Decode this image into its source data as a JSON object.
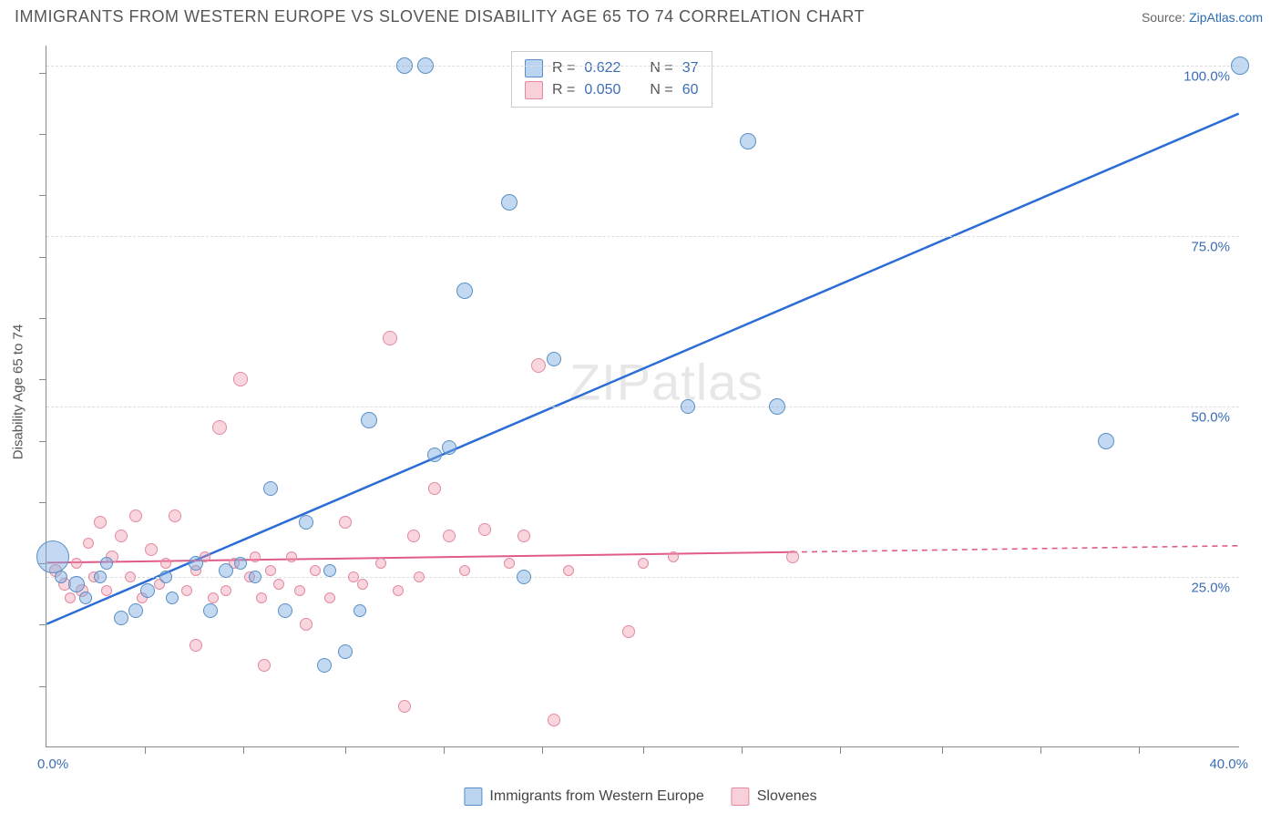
{
  "title": "IMMIGRANTS FROM WESTERN EUROPE VS SLOVENE DISABILITY AGE 65 TO 74 CORRELATION CHART",
  "source_label": "Source: ",
  "source_name": "ZipAtlas.com",
  "y_axis_label": "Disability Age 65 to 74",
  "watermark": "ZIPatlas",
  "chart": {
    "type": "scatter",
    "xlim": [
      0,
      40
    ],
    "ylim": [
      0,
      103
    ],
    "x_tick_labels": [
      "0.0%",
      "40.0%"
    ],
    "y_ticks": [
      25,
      50,
      75,
      100
    ],
    "y_tick_labels": [
      "25.0%",
      "50.0%",
      "75.0%",
      "100.0%"
    ],
    "x_minor_ticks": [
      3.3,
      6.6,
      10,
      13.3,
      16.6,
      20,
      23.3,
      26.6,
      30,
      33.3,
      36.6
    ],
    "y_minor_ticks": [
      9,
      18,
      27,
      36,
      45,
      54,
      63,
      72,
      81,
      90,
      99
    ],
    "background_color": "#ffffff",
    "grid_color": "#dddddd",
    "series": [
      {
        "name": "Immigrants from Western Europe",
        "color_fill": "rgba(120,170,225,0.45)",
        "color_stroke": "#5a8fc7",
        "R": "0.622",
        "N": "37",
        "regression": {
          "x1": 0,
          "y1": 18,
          "x2": 40,
          "y2": 93,
          "solid_until_x": 40,
          "color": "#2b6cd6",
          "width": 2.5
        },
        "points": [
          {
            "x": 0.2,
            "y": 28,
            "r": 18
          },
          {
            "x": 0.5,
            "y": 25,
            "r": 7
          },
          {
            "x": 1.0,
            "y": 24,
            "r": 9
          },
          {
            "x": 1.3,
            "y": 22,
            "r": 7
          },
          {
            "x": 1.8,
            "y": 25,
            "r": 7
          },
          {
            "x": 2.0,
            "y": 27,
            "r": 7
          },
          {
            "x": 2.5,
            "y": 19,
            "r": 8
          },
          {
            "x": 3.0,
            "y": 20,
            "r": 8
          },
          {
            "x": 3.4,
            "y": 23,
            "r": 8
          },
          {
            "x": 4.0,
            "y": 25,
            "r": 7
          },
          {
            "x": 4.2,
            "y": 22,
            "r": 7
          },
          {
            "x": 5.0,
            "y": 27,
            "r": 8
          },
          {
            "x": 5.5,
            "y": 20,
            "r": 8
          },
          {
            "x": 6.0,
            "y": 26,
            "r": 8
          },
          {
            "x": 6.5,
            "y": 27,
            "r": 7
          },
          {
            "x": 7.0,
            "y": 25,
            "r": 7
          },
          {
            "x": 7.5,
            "y": 38,
            "r": 8
          },
          {
            "x": 8.0,
            "y": 20,
            "r": 8
          },
          {
            "x": 8.7,
            "y": 33,
            "r": 8
          },
          {
            "x": 9.3,
            "y": 12,
            "r": 8
          },
          {
            "x": 9.5,
            "y": 26,
            "r": 7
          },
          {
            "x": 10.0,
            "y": 14,
            "r": 8
          },
          {
            "x": 10.5,
            "y": 20,
            "r": 7
          },
          {
            "x": 10.8,
            "y": 48,
            "r": 9
          },
          {
            "x": 12.0,
            "y": 100,
            "r": 9
          },
          {
            "x": 12.7,
            "y": 100,
            "r": 9
          },
          {
            "x": 13.0,
            "y": 43,
            "r": 8
          },
          {
            "x": 13.5,
            "y": 44,
            "r": 8
          },
          {
            "x": 14.0,
            "y": 67,
            "r": 9
          },
          {
            "x": 15.5,
            "y": 80,
            "r": 9
          },
          {
            "x": 16.0,
            "y": 25,
            "r": 8
          },
          {
            "x": 17.0,
            "y": 57,
            "r": 8
          },
          {
            "x": 21.5,
            "y": 50,
            "r": 8
          },
          {
            "x": 23.5,
            "y": 89,
            "r": 9
          },
          {
            "x": 24.5,
            "y": 50,
            "r": 9
          },
          {
            "x": 35.5,
            "y": 45,
            "r": 9
          },
          {
            "x": 40.0,
            "y": 100,
            "r": 10
          }
        ]
      },
      {
        "name": "Slovenes",
        "color_fill": "rgba(240,150,170,0.4)",
        "color_stroke": "#e28aa0",
        "R": "0.050",
        "N": "60",
        "regression": {
          "x1": 0,
          "y1": 27,
          "x2": 40,
          "y2": 29.5,
          "solid_until_x": 25,
          "color": "#e05a8a",
          "width": 2
        },
        "points": [
          {
            "x": 0.3,
            "y": 26,
            "r": 7
          },
          {
            "x": 0.6,
            "y": 24,
            "r": 7
          },
          {
            "x": 0.8,
            "y": 22,
            "r": 6
          },
          {
            "x": 1.0,
            "y": 27,
            "r": 6
          },
          {
            "x": 1.2,
            "y": 23,
            "r": 7
          },
          {
            "x": 1.4,
            "y": 30,
            "r": 6
          },
          {
            "x": 1.6,
            "y": 25,
            "r": 6
          },
          {
            "x": 1.8,
            "y": 33,
            "r": 7
          },
          {
            "x": 2.0,
            "y": 23,
            "r": 6
          },
          {
            "x": 2.2,
            "y": 28,
            "r": 7
          },
          {
            "x": 2.5,
            "y": 31,
            "r": 7
          },
          {
            "x": 2.8,
            "y": 25,
            "r": 6
          },
          {
            "x": 3.0,
            "y": 34,
            "r": 7
          },
          {
            "x": 3.2,
            "y": 22,
            "r": 6
          },
          {
            "x": 3.5,
            "y": 29,
            "r": 7
          },
          {
            "x": 3.8,
            "y": 24,
            "r": 6
          },
          {
            "x": 4.0,
            "y": 27,
            "r": 6
          },
          {
            "x": 4.3,
            "y": 34,
            "r": 7
          },
          {
            "x": 4.7,
            "y": 23,
            "r": 6
          },
          {
            "x": 5.0,
            "y": 15,
            "r": 7
          },
          {
            "x": 5.0,
            "y": 26,
            "r": 6
          },
          {
            "x": 5.3,
            "y": 28,
            "r": 6
          },
          {
            "x": 5.6,
            "y": 22,
            "r": 6
          },
          {
            "x": 5.8,
            "y": 47,
            "r": 8
          },
          {
            "x": 6.0,
            "y": 23,
            "r": 6
          },
          {
            "x": 6.3,
            "y": 27,
            "r": 6
          },
          {
            "x": 6.5,
            "y": 54,
            "r": 8
          },
          {
            "x": 6.8,
            "y": 25,
            "r": 6
          },
          {
            "x": 7.0,
            "y": 28,
            "r": 6
          },
          {
            "x": 7.2,
            "y": 22,
            "r": 6
          },
          {
            "x": 7.3,
            "y": 12,
            "r": 7
          },
          {
            "x": 7.5,
            "y": 26,
            "r": 6
          },
          {
            "x": 7.8,
            "y": 24,
            "r": 6
          },
          {
            "x": 8.2,
            "y": 28,
            "r": 6
          },
          {
            "x": 8.5,
            "y": 23,
            "r": 6
          },
          {
            "x": 8.7,
            "y": 18,
            "r": 7
          },
          {
            "x": 9.0,
            "y": 26,
            "r": 6
          },
          {
            "x": 9.5,
            "y": 22,
            "r": 6
          },
          {
            "x": 10.0,
            "y": 33,
            "r": 7
          },
          {
            "x": 10.3,
            "y": 25,
            "r": 6
          },
          {
            "x": 10.6,
            "y": 24,
            "r": 6
          },
          {
            "x": 11.2,
            "y": 27,
            "r": 6
          },
          {
            "x": 11.5,
            "y": 60,
            "r": 8
          },
          {
            "x": 11.8,
            "y": 23,
            "r": 6
          },
          {
            "x": 12.0,
            "y": 6,
            "r": 7
          },
          {
            "x": 12.3,
            "y": 31,
            "r": 7
          },
          {
            "x": 12.5,
            "y": 25,
            "r": 6
          },
          {
            "x": 13.0,
            "y": 38,
            "r": 7
          },
          {
            "x": 13.5,
            "y": 31,
            "r": 7
          },
          {
            "x": 14.0,
            "y": 26,
            "r": 6
          },
          {
            "x": 14.7,
            "y": 32,
            "r": 7
          },
          {
            "x": 15.5,
            "y": 27,
            "r": 6
          },
          {
            "x": 16.0,
            "y": 31,
            "r": 7
          },
          {
            "x": 16.5,
            "y": 56,
            "r": 8
          },
          {
            "x": 17.0,
            "y": 4,
            "r": 7
          },
          {
            "x": 17.5,
            "y": 26,
            "r": 6
          },
          {
            "x": 19.5,
            "y": 17,
            "r": 7
          },
          {
            "x": 20.0,
            "y": 27,
            "r": 6
          },
          {
            "x": 21.0,
            "y": 28,
            "r": 6
          },
          {
            "x": 25.0,
            "y": 28,
            "r": 7
          }
        ]
      }
    ]
  },
  "legend_box": {
    "rows": [
      {
        "swatch": "blue",
        "R_label": "R =",
        "R_val": "0.622",
        "N_label": "N =",
        "N_val": "37"
      },
      {
        "swatch": "pink",
        "R_label": "R =",
        "R_val": "0.050",
        "N_label": "N =",
        "N_val": "60"
      }
    ]
  },
  "bottom_legend": [
    {
      "swatch": "blue",
      "label": "Immigrants from Western Europe"
    },
    {
      "swatch": "pink",
      "label": "Slovenes"
    }
  ]
}
